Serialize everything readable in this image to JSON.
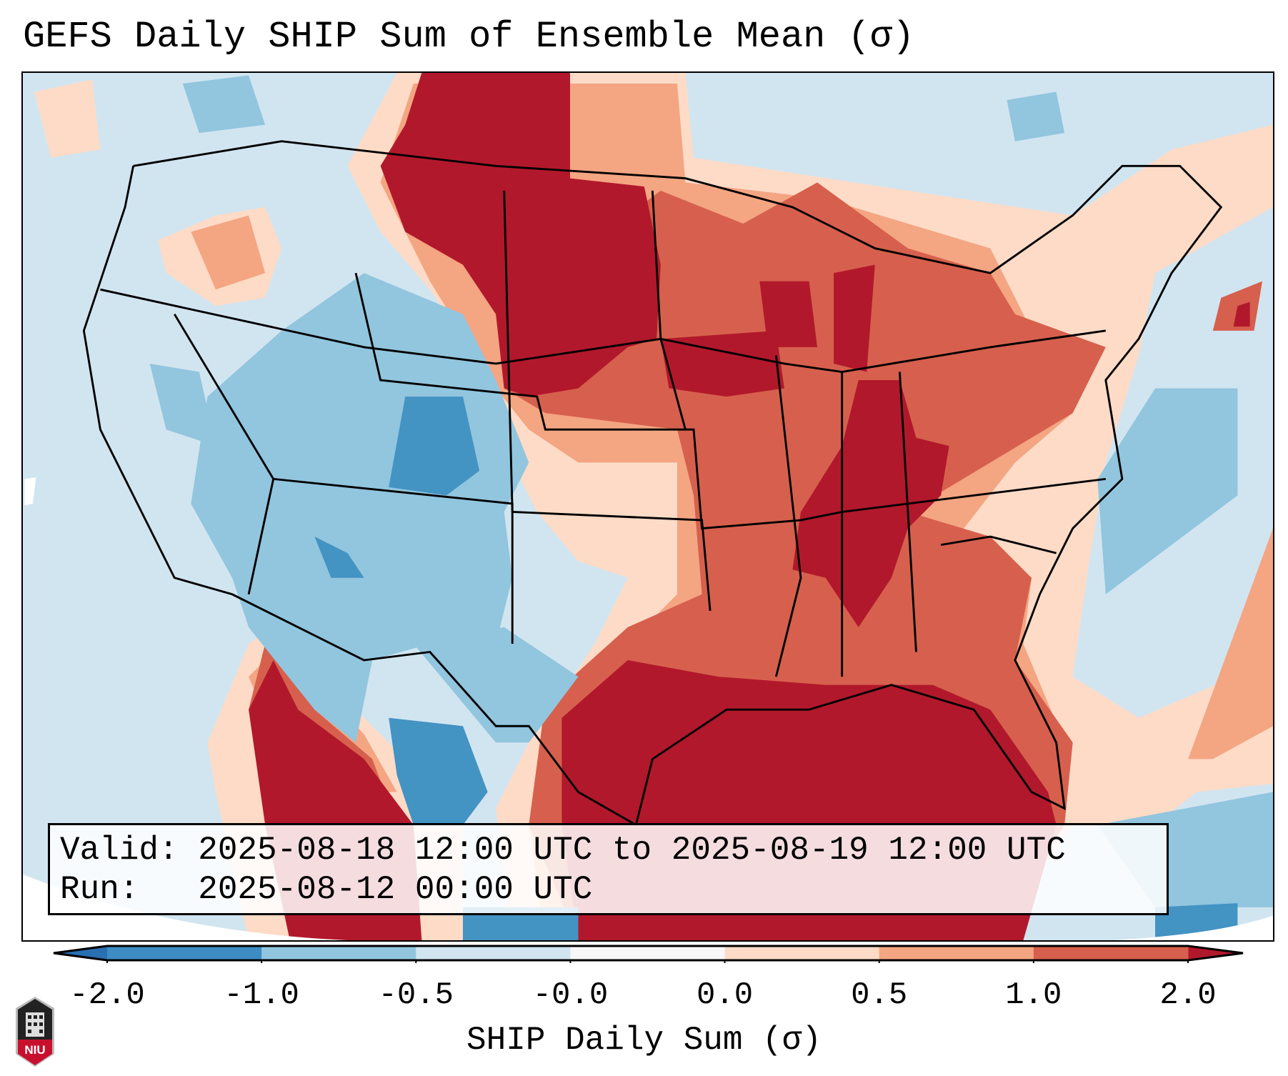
{
  "title": "GEFS Daily SHIP Sum of Ensemble Mean (σ)",
  "info": {
    "valid_line": "Valid: 2025-08-18 12:00 UTC to 2025-08-19 12:00 UTC",
    "run_line": "Run:   2025-08-12 00:00 UTC"
  },
  "colorbar": {
    "label": "SHIP Daily Sum (σ)",
    "ticks": [
      "-2.0",
      "-1.0",
      "-0.5",
      "-0.0",
      "0.0",
      "0.5",
      "1.0",
      "2.0"
    ],
    "colors": [
      "#3d8cc4",
      "#92c5de",
      "#d1e5f0",
      "#f7f7f7",
      "#fddbc7",
      "#f4a582",
      "#d6604d"
    ],
    "extend_low_color": "#2a6fb0",
    "extend_high_color": "#b2182b"
  },
  "logo": {
    "text": "NIU"
  }
}
